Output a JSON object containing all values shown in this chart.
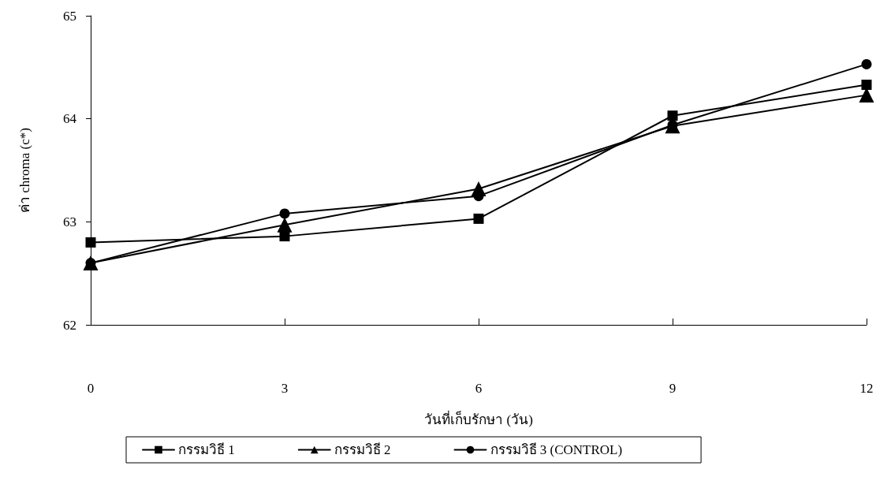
{
  "chart_data": {
    "type": "line",
    "xlabel": "วันที่เก็บรักษา (วัน)",
    "ylabel": "ค่า chroma (c*)",
    "categories": [
      "0",
      "3",
      "6",
      "9",
      "12"
    ],
    "series": [
      {
        "name": "กรรมวิธี 1",
        "color": "#000000",
        "marker": "square",
        "values": [
          62.8,
          62.86,
          63.03,
          64.03,
          64.33
        ]
      },
      {
        "name": "กรรมวิธี 2",
        "color": "#000000",
        "marker": "triangle",
        "values": [
          62.6,
          62.97,
          63.32,
          63.93,
          64.23
        ]
      },
      {
        "name": "กรรมวิธี 3 (CONTROL)",
        "color": "#000000",
        "marker": "circle",
        "values": [
          62.6,
          63.08,
          63.25,
          63.94,
          64.53
        ]
      }
    ],
    "ylim": [
      62,
      65
    ],
    "yticks": [
      62,
      63,
      64,
      65
    ],
    "grid": false,
    "legend": "bottom",
    "line_style": "solid"
  }
}
